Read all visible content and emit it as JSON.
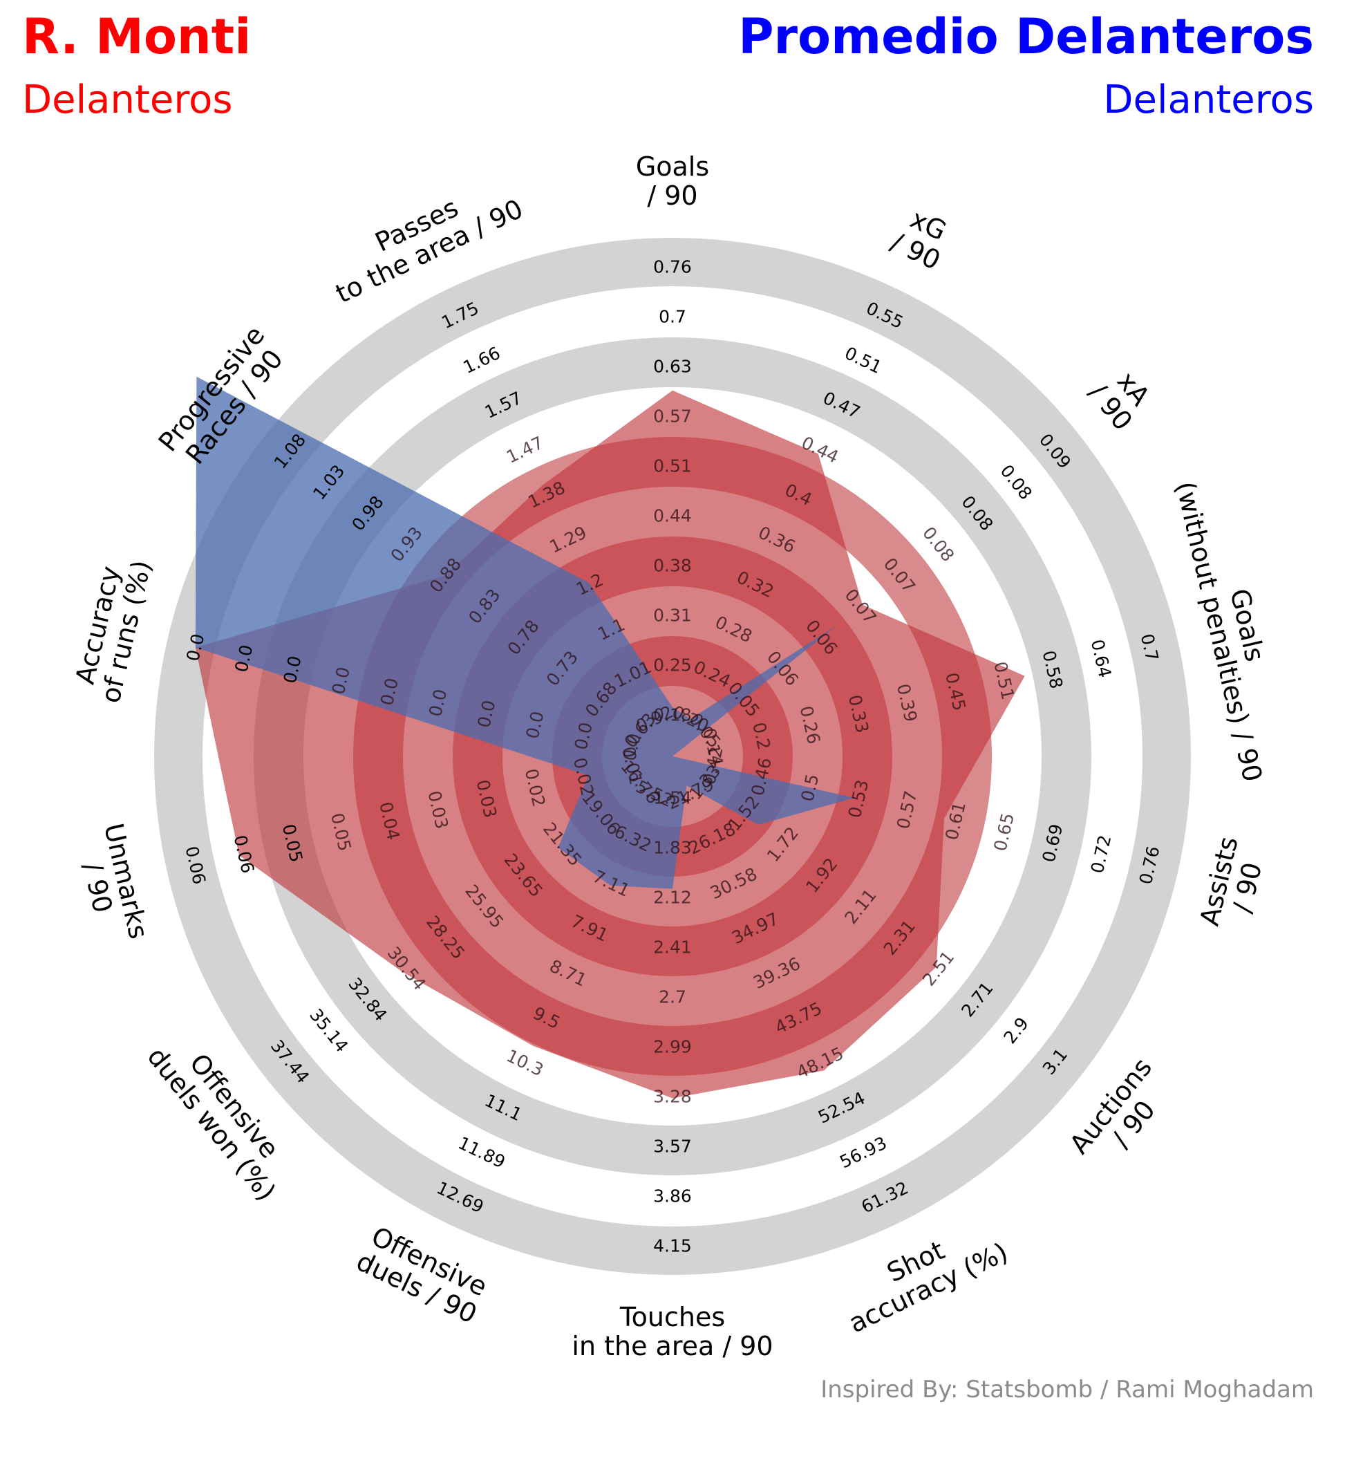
{
  "header": {
    "player_name": "R. Monti",
    "player_group": "Delanteros",
    "compare_name": "Promedio Delanteros",
    "compare_group": "Delanteros"
  },
  "credit": "Inspired By: Statsbomb / Rami Moghadam",
  "colors": {
    "player": "#ff0000",
    "compare": "#0000ff",
    "player_fill": "#c0333a",
    "compare_fill": "#4a6cb0",
    "ring_grey": "#d3d3d3",
    "ring_red": "#d98a8d",
    "credit_text": "#8a8a8f"
  },
  "chart_data": {
    "type": "radar",
    "start_angle_deg": 90,
    "direction": "clockwise",
    "axes": [
      {
        "label": "Goals\n/ 90",
        "ticks": [
          "0.18",
          "0.25",
          "0.31",
          "0.38",
          "0.44",
          "0.51",
          "0.57",
          "0.63",
          "0.7",
          "0.76"
        ]
      },
      {
        "label": "xG\n/ 90",
        "ticks": [
          "0.20",
          "0.24",
          "0.28",
          "0.32",
          "0.36",
          "0.4",
          "0.44",
          "0.47",
          "0.51",
          "0.55"
        ]
      },
      {
        "label": "xA\n/ 90",
        "ticks": [
          "0.05",
          "0.05",
          "0.06",
          "0.06",
          "0.07",
          "0.07",
          "0.08",
          "0.08",
          "0.08",
          "0.09"
        ]
      },
      {
        "label": "Goals\n(without penalties) / 90",
        "ticks": [
          "0.14",
          "0.2",
          "0.26",
          "0.33",
          "0.39",
          "0.45",
          "0.51",
          "0.58",
          "0.64",
          "0.7"
        ]
      },
      {
        "label": "Assists\n/ 90",
        "ticks": [
          "0.42",
          "0.46",
          "0.5",
          "0.53",
          "0.57",
          "0.61",
          "0.65",
          "0.69",
          "0.72",
          "0.76"
        ]
      },
      {
        "label": "Auctions\n/ 90",
        "ticks": [
          "1.33",
          "1.52",
          "1.72",
          "1.92",
          "2.11",
          "2.31",
          "2.51",
          "2.71",
          "2.9",
          "3.1"
        ]
      },
      {
        "label": "Shot\naccuracy (%)",
        "ticks": [
          "21.79",
          "26.18",
          "30.58",
          "34.97",
          "39.36",
          "43.75",
          "48.15",
          "52.54",
          "56.93",
          "61.32"
        ]
      },
      {
        "label": "Touches\nin the area / 90",
        "ticks": [
          "1.54",
          "1.83",
          "2.12",
          "2.41",
          "2.7",
          "2.99",
          "3.28",
          "3.57",
          "3.86",
          "4.15"
        ]
      },
      {
        "label": "Offensive\nduels / 90",
        "ticks": [
          "5.52",
          "6.32",
          "7.11",
          "7.91",
          "8.71",
          "9.5",
          "10.3",
          "11.1",
          "11.89",
          "12.69"
        ]
      },
      {
        "label": "Offensive\nduels won (%)",
        "ticks": [
          "16.76",
          "19.06",
          "21.35",
          "23.65",
          "25.95",
          "28.25",
          "30.54",
          "32.84",
          "35.14",
          "37.44"
        ]
      },
      {
        "label": "Unmarks\n/ 90",
        "ticks": [
          "0.01",
          "0.02",
          "0.02",
          "0.03",
          "0.03",
          "0.04",
          "0.05",
          "0.05",
          "0.06",
          "0.06"
        ]
      },
      {
        "label": "Accuracy\nof runs (%)",
        "ticks": [
          "0.0",
          "0.0",
          "0.0",
          "0.0",
          "0.0",
          "0.0",
          "0.0",
          "0.0",
          "0.0",
          "0.0"
        ]
      },
      {
        "label": "Progressive\nRaces / 90",
        "ticks": [
          "0.63",
          "0.68",
          "0.73",
          "0.78",
          "0.83",
          "0.88",
          "0.93",
          "0.98",
          "1.03",
          "1.08"
        ]
      },
      {
        "label": "Passes\nto the area / 90",
        "ticks": [
          "0.92",
          "1.01",
          "1.1",
          "1.2",
          "1.29",
          "1.38",
          "1.47",
          "1.57",
          "1.66",
          "1.75"
        ]
      }
    ],
    "series": [
      {
        "name": "R. Monti",
        "values": [
          0.6,
          0.43,
          0.068,
          0.54,
          0.6,
          2.5,
          48.9,
          3.29,
          10.0,
          30.8,
          0.055,
          0.0,
          0.88,
          1.4
        ]
      },
      {
        "name": "Promedio Delanteros",
        "values": [
          0.19,
          0.2,
          0.065,
          0.07,
          0.53,
          1.6,
          21.0,
          2.07,
          7.15,
          21.6,
          0.015,
          0.0,
          1.2,
          1.2
        ]
      }
    ]
  }
}
